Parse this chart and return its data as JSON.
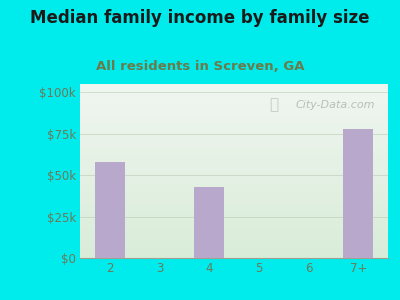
{
  "title": "Median family income by family size",
  "subtitle": "All residents in Screven, GA",
  "categories": [
    "2",
    "3",
    "4",
    "5",
    "6",
    "7+"
  ],
  "values": [
    58000,
    0,
    43000,
    0,
    0,
    78000
  ],
  "bar_color": "#b8a8cc",
  "background_outer": "#00ecec",
  "background_inner_top": "#f0f5f0",
  "background_inner_bottom": "#d8ecd8",
  "title_color": "#1a1a1a",
  "subtitle_color": "#6a7a4a",
  "tick_label_color": "#6a7a5a",
  "yticks": [
    0,
    25000,
    50000,
    75000,
    100000
  ],
  "ytick_labels": [
    "$0",
    "$25k",
    "$50k",
    "$75k",
    "$100k"
  ],
  "ylim": [
    0,
    105000
  ],
  "watermark": "City-Data.com",
  "watermark_color": "#b0bab0",
  "title_fontsize": 12,
  "subtitle_fontsize": 9.5,
  "tick_fontsize": 8.5
}
